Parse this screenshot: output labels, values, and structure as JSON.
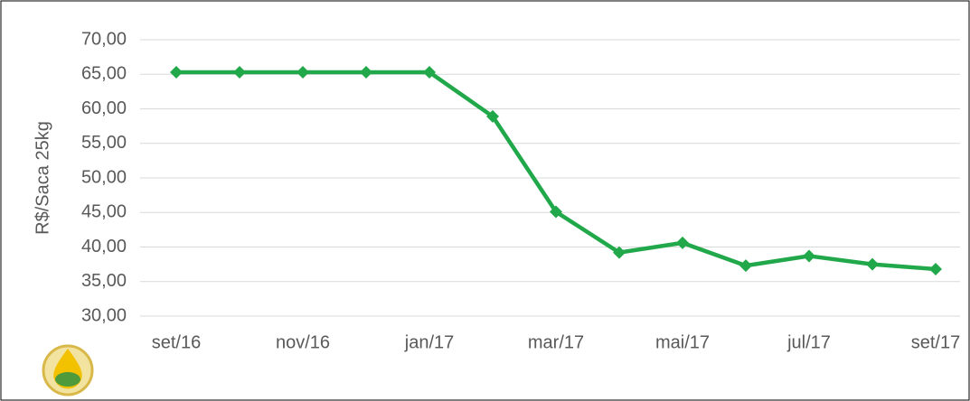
{
  "chart_data": {
    "type": "line",
    "y_label": "R$/Saca 25kg",
    "categories": [
      "set/16",
      null,
      "nov/16",
      null,
      "jan/17",
      null,
      "mar/17",
      null,
      "mai/17",
      null,
      "jul/17",
      null,
      "set/17"
    ],
    "values": [
      65.3,
      65.3,
      65.3,
      65.3,
      65.3,
      58.9,
      45.1,
      39.2,
      40.6,
      37.3,
      38.7,
      37.5,
      36.8
    ],
    "color": "#21a84a",
    "ylim": [
      30,
      70
    ],
    "yticks": [
      {
        "value": 30,
        "label": "30,00"
      },
      {
        "value": 35,
        "label": "35,00"
      },
      {
        "value": 40,
        "label": "40,00"
      },
      {
        "value": 45,
        "label": "45,00"
      },
      {
        "value": 50,
        "label": "50,00"
      },
      {
        "value": 55,
        "label": "55,00"
      },
      {
        "value": 60,
        "label": "60,00"
      },
      {
        "value": 65,
        "label": "65,00"
      },
      {
        "value": 70,
        "label": "70,00"
      }
    ],
    "grid": true
  }
}
